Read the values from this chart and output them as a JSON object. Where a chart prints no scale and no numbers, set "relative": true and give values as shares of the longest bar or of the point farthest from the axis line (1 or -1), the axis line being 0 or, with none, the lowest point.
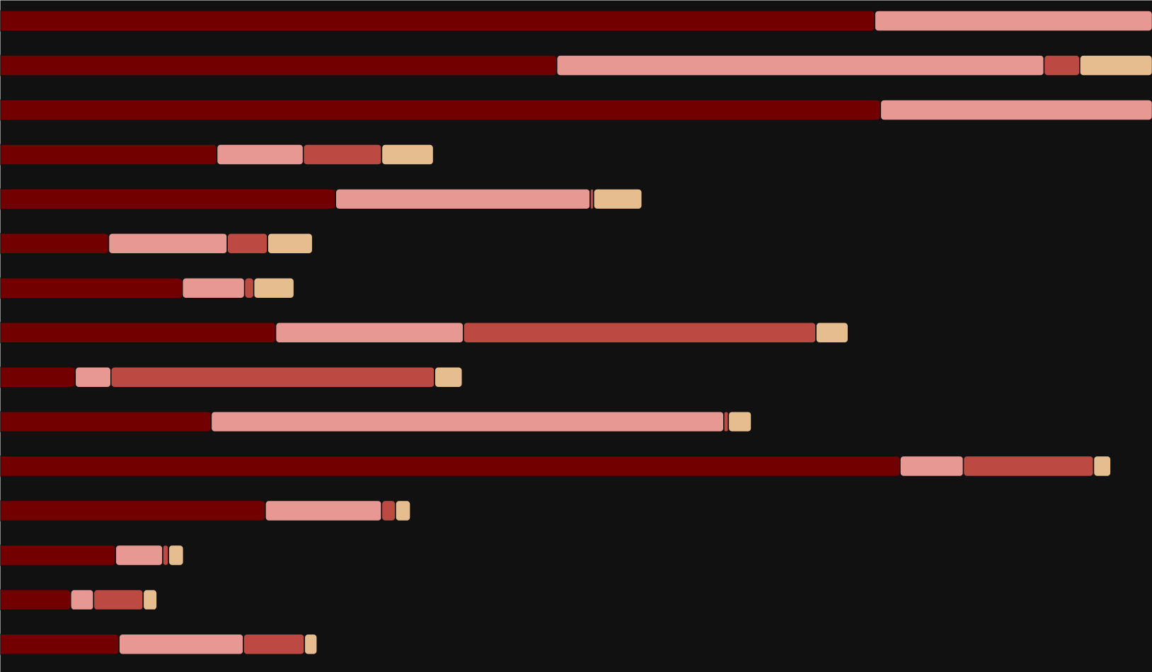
{
  "chart_data": {
    "type": "bar",
    "orientation": "horizontal",
    "stacked": true,
    "relative": true,
    "categories": [
      null,
      null,
      null,
      null,
      null,
      null,
      null,
      null,
      null,
      null,
      null,
      null,
      null,
      null,
      null
    ],
    "series": [
      {
        "color": "#720000",
        "values": [
          0.759,
          0.483,
          0.764,
          0.188,
          0.291,
          0.094,
          0.158,
          0.239,
          0.065,
          0.183,
          0.781,
          0.23,
          0.1,
          0.061,
          0.103
        ]
      },
      {
        "color": "#e89893",
        "values": [
          0.241,
          0.423,
          0.236,
          0.075,
          0.221,
          0.103,
          0.054,
          0.163,
          0.031,
          0.445,
          0.055,
          0.101,
          0.041,
          0.02,
          0.108
        ]
      },
      {
        "color": "#bc4a42",
        "values": [
          null,
          0.031,
          null,
          0.068,
          0.003,
          0.035,
          0.008,
          0.306,
          0.281,
          0.004,
          0.113,
          0.012,
          0.005,
          0.043,
          0.053
        ]
      },
      {
        "color": "#e5bd8e",
        "values": [
          null,
          0.063,
          null,
          0.045,
          0.042,
          0.039,
          0.035,
          0.028,
          0.024,
          0.02,
          0.015,
          0.013,
          0.013,
          0.012,
          0.011
        ]
      }
    ]
  }
}
